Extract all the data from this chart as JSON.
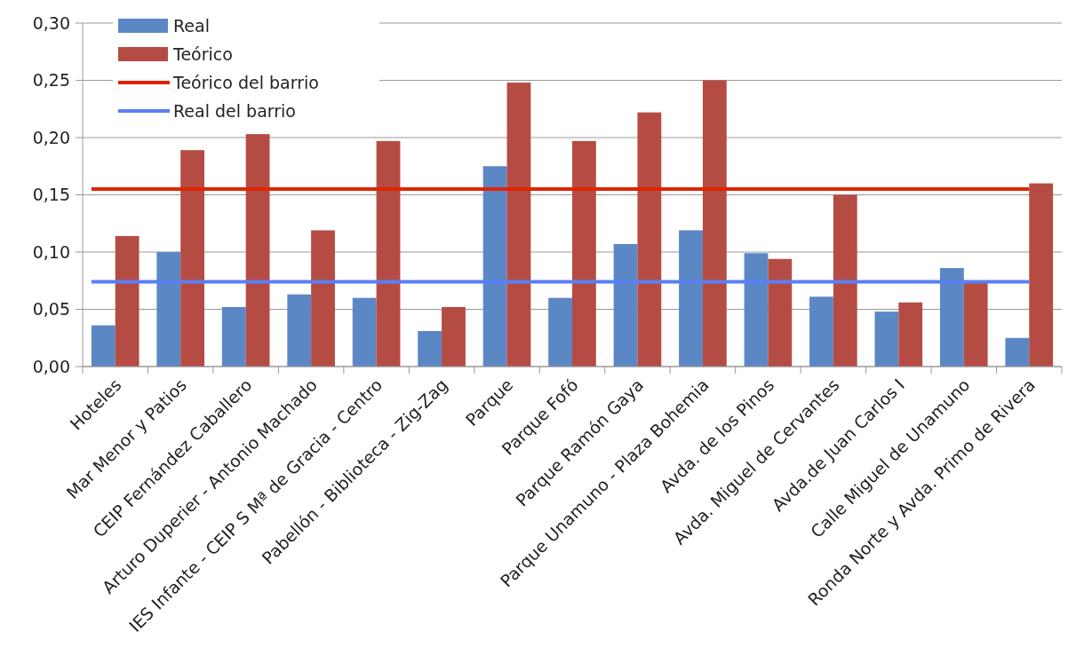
{
  "chart_data": {
    "type": "bar",
    "categories": [
      "Hoteles",
      "Mar Menor y Patios",
      "CEIP Fernández Caballero",
      "Arturo Duperier - Antonio Machado",
      "IES Infante - CEIP S Mª de Gracia - Centro",
      "Pabellón - Biblioteca - Zig-Zag",
      "Parque",
      "Parque Fofó",
      "Parque Ramón Gaya",
      "Parque Unamuno - Plaza Bohemia",
      "Avda. de los Pinos",
      "Avda. Miguel de Cervantes",
      "Avda.de  Juan Carlos I",
      "Calle Miguel de Unamuno",
      "Ronda Norte y Avda. Primo de Rivera"
    ],
    "series": [
      {
        "name": "Real",
        "color": "#5b87c5",
        "values": [
          0.036,
          0.1,
          0.052,
          0.063,
          0.06,
          0.031,
          0.175,
          0.06,
          0.107,
          0.119,
          0.099,
          0.061,
          0.048,
          0.086,
          0.025
        ]
      },
      {
        "name": "Teórico",
        "color": "#b54c44",
        "values": [
          0.114,
          0.189,
          0.203,
          0.119,
          0.197,
          0.052,
          0.248,
          0.197,
          0.222,
          0.25,
          0.094,
          0.15,
          0.056,
          0.074,
          0.16
        ]
      }
    ],
    "ref_lines": [
      {
        "axis": "y",
        "value": 0.155,
        "label": "Teórico del barrio",
        "color": "#e02400"
      },
      {
        "axis": "y",
        "value": 0.074,
        "label": "Real del barrio",
        "color": "#5a7ff5"
      }
    ],
    "ylim": [
      0,
      0.3
    ],
    "yticks": [
      {
        "value": 0,
        "label": "0,00"
      },
      {
        "value": 0.05,
        "label": "0,05"
      },
      {
        "value": 0.1,
        "label": "0,10"
      },
      {
        "value": 0.15,
        "label": "0,15"
      },
      {
        "value": 0.2,
        "label": "0,20"
      },
      {
        "value": 0.25,
        "label": "0,25"
      },
      {
        "value": 0.3,
        "label": "0,30"
      }
    ],
    "grid": "y",
    "legend": "top left"
  }
}
